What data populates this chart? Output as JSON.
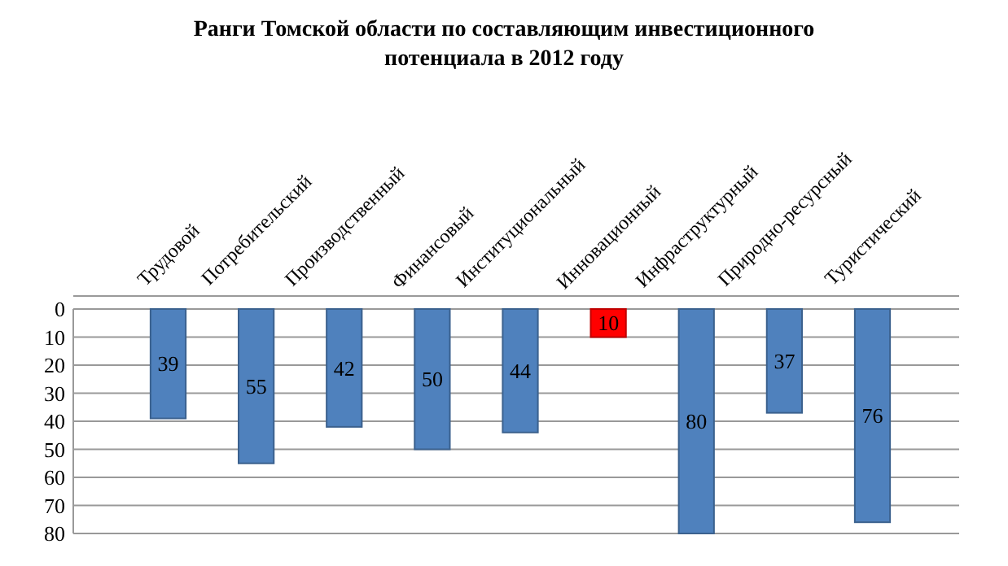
{
  "chart_data": {
    "type": "bar",
    "title": "Ранги Томской области по составляющим инвестиционного потенциала в 2012 году",
    "categories": [
      "Трудовой",
      "Потребительский",
      "Производственный",
      "Финансовый",
      "Институциональный",
      "Инновационный",
      "Инфраструктурный",
      "Природно-ресурсный",
      "Туристический"
    ],
    "values": [
      39,
      55,
      42,
      50,
      44,
      10,
      80,
      37,
      76
    ],
    "colors": [
      "#4f81bd",
      "#4f81bd",
      "#4f81bd",
      "#4f81bd",
      "#4f81bd",
      "#ff0000",
      "#4f81bd",
      "#4f81bd",
      "#4f81bd"
    ],
    "ylim": [
      80,
      0
    ],
    "yticks": [
      0,
      10,
      20,
      30,
      40,
      50,
      60,
      70,
      80
    ],
    "grid": "y",
    "data_labels": true
  }
}
